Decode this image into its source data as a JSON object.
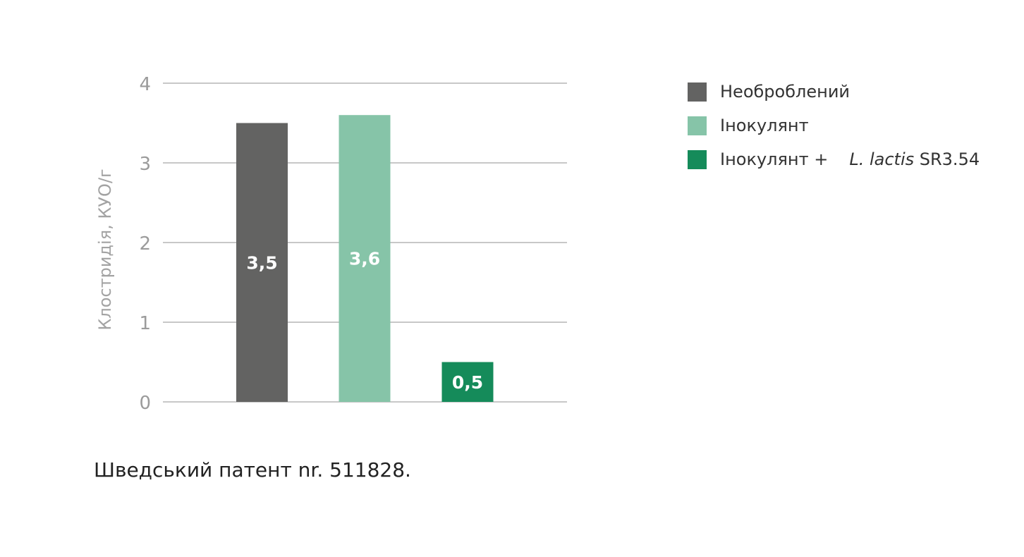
{
  "chart_data": {
    "type": "bar",
    "categories": [
      "Необроблений",
      "Інокулянт",
      "Інокулянт + L. lactis SR3.54"
    ],
    "values": [
      3.5,
      3.6,
      0.5
    ],
    "value_labels": [
      "3,5",
      "3,6",
      "0,5"
    ],
    "colors": [
      "#636362",
      "#86c4a8",
      "#158b5a"
    ],
    "ylabel": "Клостридія, КУО/г",
    "ylim": [
      0,
      4
    ],
    "yticks": [
      0,
      1,
      2,
      3,
      4
    ],
    "grid": true,
    "legend_position": "right"
  },
  "legend": {
    "items": [
      {
        "label": "Необроблений",
        "color": "#636362"
      },
      {
        "label": "Інокулянт",
        "color": "#86c4a8"
      },
      {
        "label": "Інокулянт +",
        "italic": "L. lactis",
        "suffix": " SR3.54",
        "color": "#158b5a"
      }
    ]
  },
  "footnote": "Шведський патент nr. 511828."
}
